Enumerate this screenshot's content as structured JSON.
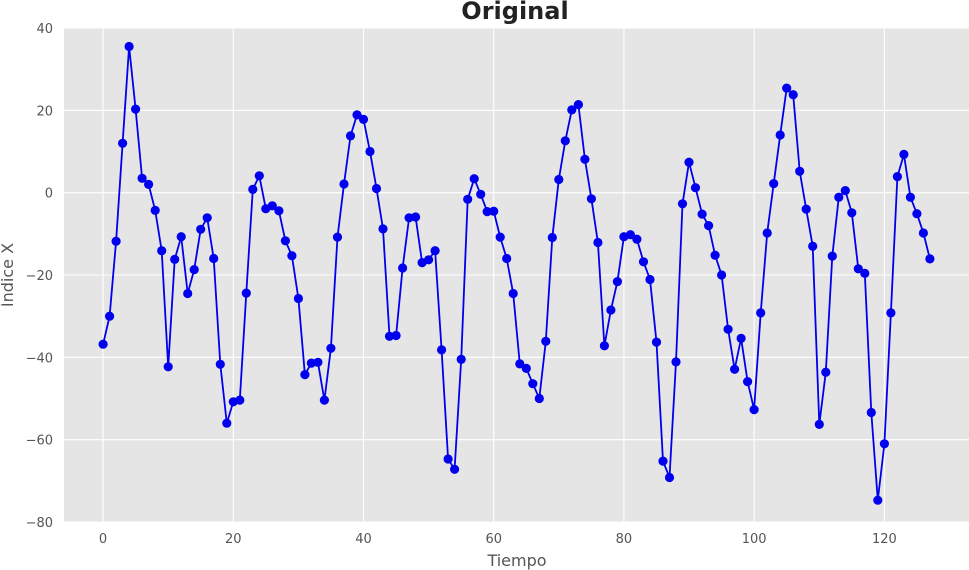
{
  "chart_data": {
    "type": "line",
    "title": "Original",
    "xlabel": "Tiempo",
    "ylabel": "Índice X",
    "xlim": [
      -6,
      133
    ],
    "ylim": [
      -80,
      40
    ],
    "xticks": [
      0,
      20,
      40,
      60,
      80,
      100,
      120
    ],
    "yticks": [
      -80,
      -60,
      -40,
      -20,
      0,
      20,
      40
    ],
    "grid": true,
    "style": "markers with connecting line",
    "line_color": "#0000ee",
    "background_color": "#e5e5e5",
    "grid_color": "#ffffff",
    "x": [
      0,
      1,
      2,
      3,
      4,
      5,
      6,
      7,
      8,
      9,
      10,
      11,
      12,
      13,
      14,
      15,
      16,
      17,
      18,
      19,
      20,
      21,
      22,
      23,
      24,
      25,
      26,
      27,
      28,
      29,
      30,
      31,
      32,
      33,
      34,
      35,
      36,
      37,
      38,
      39,
      40,
      41,
      42,
      43,
      44,
      45,
      46,
      47,
      48,
      49,
      50,
      51,
      52,
      53,
      54,
      55,
      56,
      57,
      58,
      59,
      60,
      61,
      62,
      63,
      64,
      65,
      66,
      67,
      68,
      69,
      70,
      71,
      72,
      73,
      74,
      75,
      76,
      77,
      78,
      79,
      80,
      81,
      82,
      83,
      84,
      85,
      86,
      87,
      88,
      89,
      90,
      91,
      92,
      93,
      94,
      95,
      96,
      97,
      98,
      99,
      100,
      101,
      102,
      103,
      104,
      105,
      106,
      107,
      108,
      109,
      110,
      111,
      112,
      113,
      114,
      115,
      116,
      117,
      118,
      119,
      120,
      121,
      122,
      123,
      124,
      125,
      126,
      127
    ],
    "series": [
      {
        "values": [
          -36.8,
          -30,
          -11.8,
          12,
          35.5,
          20.3,
          3.5,
          2,
          -4.3,
          -14.1,
          -42.3,
          -16.2,
          -10.7,
          -24.5,
          -18.7,
          -8.9,
          -6.1,
          -16,
          -41.7,
          -56,
          -50.8,
          -50.4,
          -24.4,
          0.8,
          4.1,
          -3.9,
          -3.2,
          -4.4,
          -11.7,
          -15.3,
          -25.7,
          -44.2,
          -41.4,
          -41.2,
          -50.4,
          -37.8,
          -10.8,
          2.1,
          13.8,
          18.9,
          17.8,
          10,
          1,
          -8.8,
          -34.9,
          -34.7,
          -18.3,
          -6.1,
          -5.9,
          -17,
          -16.3,
          -14.1,
          -38.2,
          -64.7,
          -67.2,
          -40.5,
          -1.6,
          3.4,
          -0.4,
          -4.6,
          -4.5,
          -10.8,
          -16,
          -24.5,
          -41.6,
          -42.7,
          -46.4,
          -50,
          -36.1,
          -10.9,
          3.2,
          12.6,
          20.1,
          21.4,
          8.1,
          -1.5,
          -12.1,
          -37.2,
          -28.5,
          -21.6,
          -10.7,
          -10.2,
          -11.3,
          -16.8,
          -21.1,
          -36.3,
          -65.2,
          -69.2,
          -41.1,
          -2.7,
          7.4,
          1.2,
          -5.2,
          -8,
          -15.2,
          -20,
          -33.2,
          -42.9,
          -35.4,
          -45.9,
          -52.7,
          -29.2,
          -9.8,
          2.2,
          14,
          25.4,
          23.8,
          5.2,
          -4,
          -13,
          -56.3,
          -43.6,
          -15.4,
          -1.1,
          0.5,
          -4.9,
          -18.5,
          -19.6,
          -53.4,
          -74.7,
          -61,
          -29.2,
          3.9,
          9.3,
          -1.1,
          -5.1,
          -9.8,
          -16.1
        ]
      }
    ]
  }
}
